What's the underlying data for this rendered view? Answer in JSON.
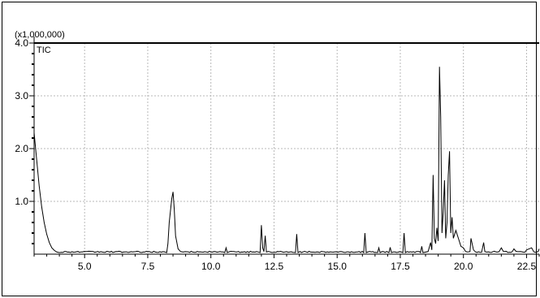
{
  "chart_data": {
    "type": "line",
    "multiplier_label": "(x1,000,000)",
    "series_label": "TIC",
    "xlim": [
      3.0,
      23.0
    ],
    "ylim": [
      0,
      4.0
    ],
    "x_ticks": [
      5.0,
      7.5,
      10.0,
      12.5,
      15.0,
      17.5,
      20.0,
      22.5
    ],
    "x_tick_labels": [
      "5.0",
      "7.5",
      "10.0",
      "12.5",
      "15.0",
      "17.5",
      "20.0",
      "22.5"
    ],
    "y_ticks": [
      1.0,
      2.0,
      3.0,
      4.0
    ],
    "y_tick_labels": [
      "1.0",
      "2.0",
      "3.0",
      "4.0"
    ],
    "grid": true,
    "baseline": 0.03,
    "points": [
      [
        3.0,
        2.3
      ],
      [
        3.1,
        1.8
      ],
      [
        3.2,
        1.3
      ],
      [
        3.3,
        0.9
      ],
      [
        3.4,
        0.6
      ],
      [
        3.5,
        0.38
      ],
      [
        3.6,
        0.22
      ],
      [
        3.7,
        0.12
      ],
      [
        3.8,
        0.07
      ],
      [
        3.9,
        0.04
      ],
      [
        4.0,
        0.03
      ],
      [
        8.25,
        0.03
      ],
      [
        8.3,
        0.2
      ],
      [
        8.35,
        0.6
      ],
      [
        8.45,
        1.05
      ],
      [
        8.5,
        1.18
      ],
      [
        8.55,
        0.85
      ],
      [
        8.6,
        0.35
      ],
      [
        8.7,
        0.1
      ],
      [
        8.8,
        0.05
      ],
      [
        8.9,
        0.04
      ],
      [
        10.55,
        0.03
      ],
      [
        10.6,
        0.12
      ],
      [
        10.65,
        0.03
      ],
      [
        11.95,
        0.03
      ],
      [
        12.0,
        0.55
      ],
      [
        12.05,
        0.12
      ],
      [
        12.1,
        0.05
      ],
      [
        12.15,
        0.35
      ],
      [
        12.2,
        0.04
      ],
      [
        13.35,
        0.03
      ],
      [
        13.4,
        0.38
      ],
      [
        13.45,
        0.03
      ],
      [
        16.05,
        0.03
      ],
      [
        16.1,
        0.4
      ],
      [
        16.15,
        0.03
      ],
      [
        16.6,
        0.03
      ],
      [
        16.65,
        0.12
      ],
      [
        16.7,
        0.03
      ],
      [
        17.05,
        0.03
      ],
      [
        17.1,
        0.13
      ],
      [
        17.15,
        0.03
      ],
      [
        17.6,
        0.03
      ],
      [
        17.65,
        0.4
      ],
      [
        17.7,
        0.03
      ],
      [
        18.3,
        0.03
      ],
      [
        18.35,
        0.15
      ],
      [
        18.4,
        0.03
      ],
      [
        18.6,
        0.05
      ],
      [
        18.7,
        0.22
      ],
      [
        18.75,
        0.08
      ],
      [
        18.8,
        1.5
      ],
      [
        18.85,
        0.3
      ],
      [
        18.9,
        0.2
      ],
      [
        18.95,
        0.5
      ],
      [
        19.0,
        0.25
      ],
      [
        19.05,
        3.55
      ],
      [
        19.1,
        2.6
      ],
      [
        19.15,
        0.4
      ],
      [
        19.2,
        0.8
      ],
      [
        19.25,
        1.4
      ],
      [
        19.3,
        0.3
      ],
      [
        19.35,
        0.6
      ],
      [
        19.4,
        1.5
      ],
      [
        19.45,
        1.95
      ],
      [
        19.5,
        0.4
      ],
      [
        19.55,
        0.7
      ],
      [
        19.6,
        0.3
      ],
      [
        19.7,
        0.45
      ],
      [
        19.8,
        0.3
      ],
      [
        19.9,
        0.15
      ],
      [
        20.0,
        0.12
      ],
      [
        20.3,
        0.3
      ],
      [
        20.4,
        0.08
      ],
      [
        20.8,
        0.22
      ],
      [
        20.85,
        0.05
      ],
      [
        21.5,
        0.12
      ],
      [
        22.0,
        0.1
      ],
      [
        22.5,
        0.08
      ],
      [
        22.7,
        0.12
      ],
      [
        23.0,
        0.1
      ]
    ]
  }
}
